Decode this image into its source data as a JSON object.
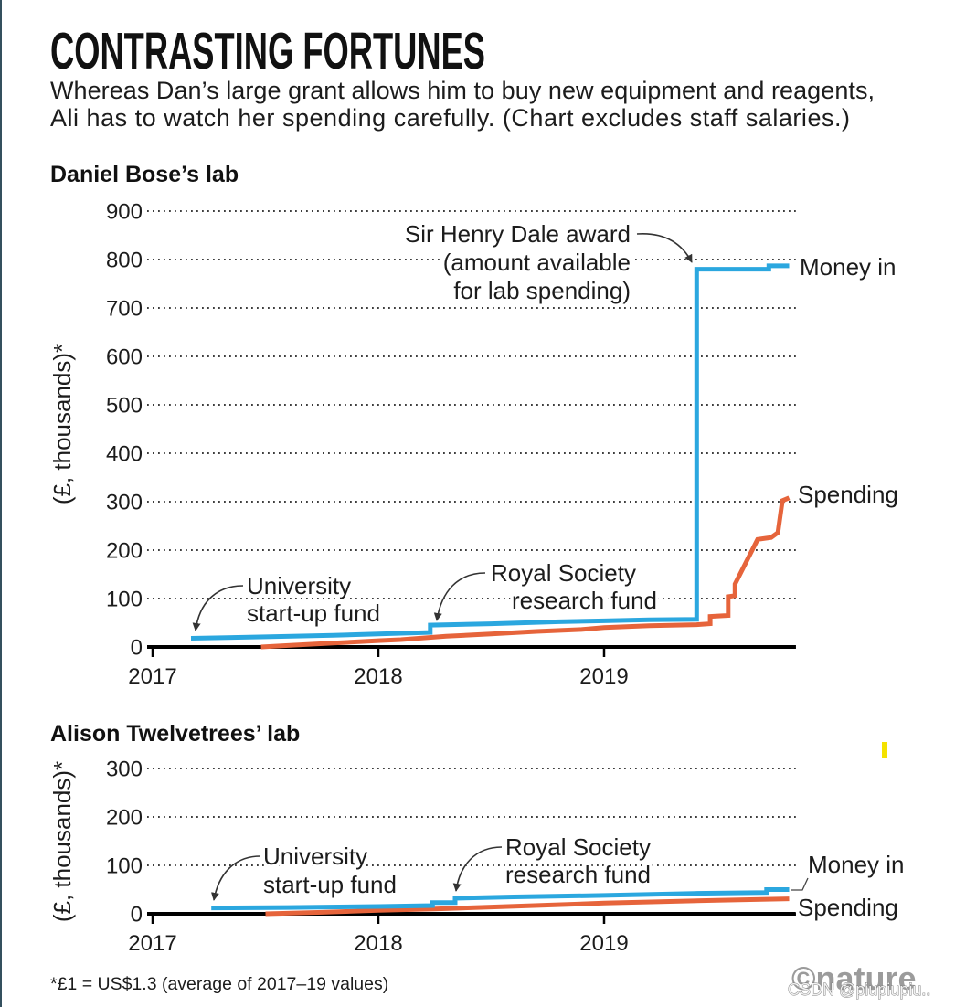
{
  "header": {
    "title": "CONTRASTING FORTUNES",
    "subtitle": [
      "Whereas Dan’s large grant allows him to buy new equipment and reagents,",
      "Ali has to watch her spending carefully. (Chart excludes staff salaries.)"
    ]
  },
  "colors": {
    "money_in": "#2ba7df",
    "spending": "#e6643b",
    "logo": "#9b9b9b",
    "left_border": "#34505e",
    "highlight_mark": "#f4e200"
  },
  "chart_data": [
    {
      "type": "line",
      "title": "Daniel Bose’s lab",
      "ylabel": "(£, thousands)*",
      "xlim": [
        2017,
        2019.85
      ],
      "ylim": [
        0,
        900
      ],
      "yticks": [
        0,
        100,
        200,
        300,
        400,
        500,
        600,
        700,
        800,
        900
      ],
      "xticks": [
        2017,
        2018,
        2019
      ],
      "grid": true,
      "series": [
        {
          "name": "Money in",
          "color": "#2ba7df",
          "x": [
            2017.17,
            2017.5,
            2017.8,
            2018.0,
            2018.23,
            2018.23,
            2018.5,
            2018.8,
            2019.0,
            2019.2,
            2019.41,
            2019.41,
            2019.73,
            2019.73,
            2019.82
          ],
          "y": [
            18,
            21,
            24,
            27,
            30,
            45,
            48,
            52,
            54,
            56,
            57,
            780,
            780,
            787,
            787
          ]
        },
        {
          "name": "Spending",
          "color": "#e6643b",
          "x": [
            2017.48,
            2017.6,
            2017.8,
            2018.0,
            2018.1,
            2018.3,
            2018.5,
            2018.7,
            2018.9,
            2019.0,
            2019.2,
            2019.41,
            2019.47,
            2019.47,
            2019.55,
            2019.55,
            2019.58,
            2019.58,
            2019.68,
            2019.74,
            2019.77,
            2019.79,
            2019.82
          ],
          "y": [
            0,
            3,
            8,
            13,
            15,
            22,
            27,
            32,
            36,
            40,
            44,
            46,
            48,
            63,
            65,
            104,
            106,
            130,
            222,
            226,
            236,
            302,
            308
          ]
        }
      ],
      "annotations": [
        {
          "lines": [
            "University",
            "start-up fund"
          ]
        },
        {
          "lines": [
            "Royal Society",
            "research fund"
          ]
        },
        {
          "lines": [
            "Sir Henry Dale award",
            "(amount available",
            "for lab spending)"
          ]
        }
      ]
    },
    {
      "type": "line",
      "title": "Alison Twelvetrees’ lab",
      "ylabel": "(£, thousands)*",
      "xlim": [
        2017,
        2019.85
      ],
      "ylim": [
        0,
        300
      ],
      "yticks": [
        0,
        100,
        200,
        300
      ],
      "xticks": [
        2017,
        2018,
        2019
      ],
      "grid": true,
      "series": [
        {
          "name": "Money in",
          "color": "#2ba7df",
          "x": [
            2017.26,
            2017.6,
            2018.0,
            2018.24,
            2018.24,
            2018.34,
            2018.34,
            2018.6,
            2019.0,
            2019.4,
            2019.72,
            2019.72,
            2019.82
          ],
          "y": [
            12,
            13,
            15,
            17,
            23,
            23,
            32,
            35,
            38,
            42,
            44,
            50,
            50
          ]
        },
        {
          "name": "Spending",
          "color": "#e6643b",
          "x": [
            2017.5,
            2017.75,
            2018.0,
            2018.25,
            2018.5,
            2018.75,
            2019.0,
            2019.25,
            2019.5,
            2019.82
          ],
          "y": [
            0,
            3,
            7,
            10,
            14,
            18,
            22,
            25,
            28,
            31
          ]
        }
      ],
      "annotations": [
        {
          "lines": [
            "University",
            "start-up fund"
          ]
        },
        {
          "lines": [
            "Royal Society",
            "research fund"
          ]
        }
      ]
    }
  ],
  "footnote": "*£1 = US$1.3 (average of 2017–19 values)",
  "logo": "©nature",
  "watermark": "CSDN @piupiupiu.."
}
